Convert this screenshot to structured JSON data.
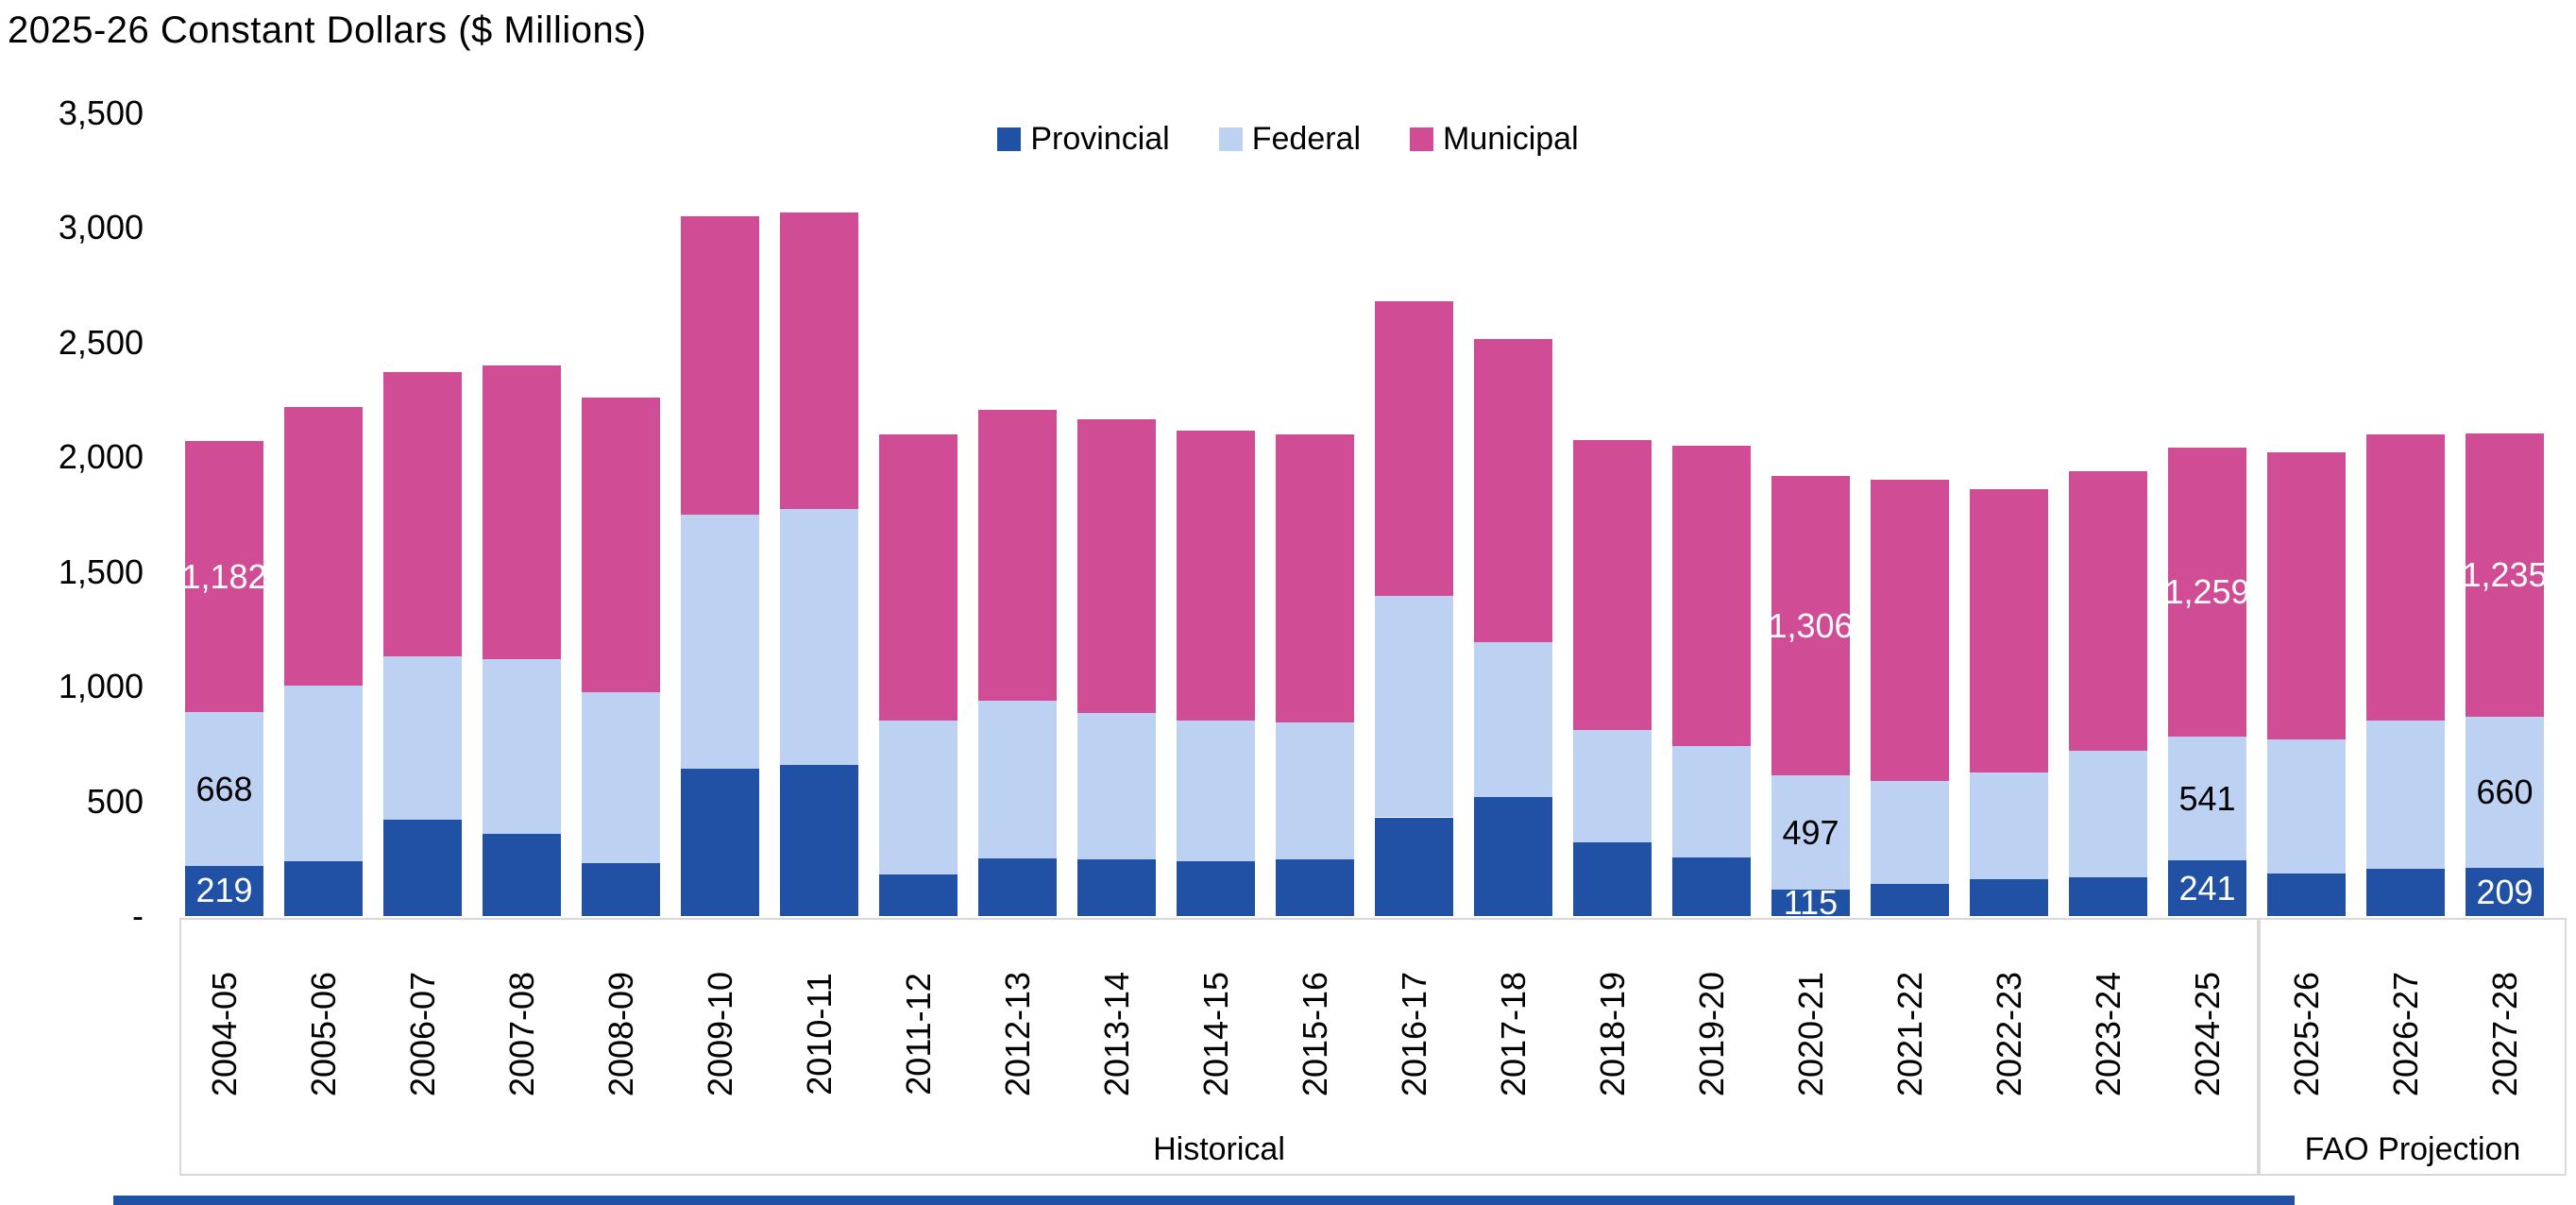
{
  "title": "2025-26 Constant Dollars ($ Millions)",
  "y_axis": {
    "ticks": [
      "3,500",
      "3,000",
      "2,500",
      "2,000",
      "1,500",
      "1,000",
      "500",
      "-"
    ],
    "max": 3500,
    "min": 0,
    "step": 500
  },
  "colors": {
    "provincial": "#2151A5",
    "federal": "#BDD2F2",
    "municipal": "#D04C94",
    "box_border": "#D9D9D9",
    "bottom_line": "#2151A5",
    "label_on_dark": "#FFFFFF",
    "label_on_light": "#000000"
  },
  "chart_data": {
    "type": "bar",
    "stacked": true,
    "title": "2025-26 Constant Dollars ($ Millions)",
    "xlabel": "",
    "ylabel": "2025-26 Constant Dollars ($ Millions)",
    "ylim": [
      0,
      3500
    ],
    "y_tick_step": 500,
    "grid": false,
    "legend_position": "top-center",
    "categories": [
      "2004-05",
      "2005-06",
      "2006-07",
      "2007-08",
      "2008-09",
      "2009-10",
      "2010-11",
      "2011-12",
      "2012-13",
      "2013-14",
      "2014-15",
      "2015-16",
      "2016-17",
      "2017-18",
      "2018-19",
      "2019-20",
      "2020-21",
      "2021-22",
      "2022-23",
      "2023-24",
      "2024-25",
      "2025-26",
      "2026-27",
      "2027-28"
    ],
    "series": [
      {
        "name": "Provincial",
        "color": "#2151A5",
        "values": [
          219,
          240,
          420,
          360,
          230,
          640,
          660,
          180,
          250,
          245,
          240,
          245,
          430,
          520,
          320,
          255,
          115,
          140,
          160,
          170,
          241,
          185,
          205,
          209
        ]
      },
      {
        "name": "Federal",
        "color": "#BDD2F2",
        "values": [
          668,
          765,
          710,
          760,
          745,
          1110,
          1115,
          670,
          690,
          640,
          610,
          600,
          965,
          675,
          490,
          485,
          497,
          450,
          465,
          550,
          541,
          585,
          645,
          660
        ]
      },
      {
        "name": "Municipal",
        "color": "#D04C94",
        "values": [
          1182,
          1215,
          1240,
          1280,
          1285,
          1300,
          1290,
          1250,
          1265,
          1280,
          1265,
          1255,
          1285,
          1320,
          1265,
          1310,
          1306,
          1310,
          1235,
          1220,
          1259,
          1250,
          1250,
          1235
        ]
      }
    ],
    "data_labels": [
      {
        "category": "2004-05",
        "provincial": "219",
        "federal": "668",
        "municipal": "1,182"
      },
      {
        "category": "2020-21",
        "provincial": "115",
        "federal": "497",
        "municipal": "1,306"
      },
      {
        "category": "2024-25",
        "provincial": "241",
        "federal": "541",
        "municipal": "1,259"
      },
      {
        "category": "2027-28",
        "provincial": "209",
        "federal": "660",
        "municipal": "1,235"
      }
    ],
    "sections": [
      {
        "label": "Historical",
        "from": "2004-05",
        "to": "2024-25"
      },
      {
        "label": "FAO Projection",
        "from": "2025-26",
        "to": "2027-28"
      }
    ]
  }
}
